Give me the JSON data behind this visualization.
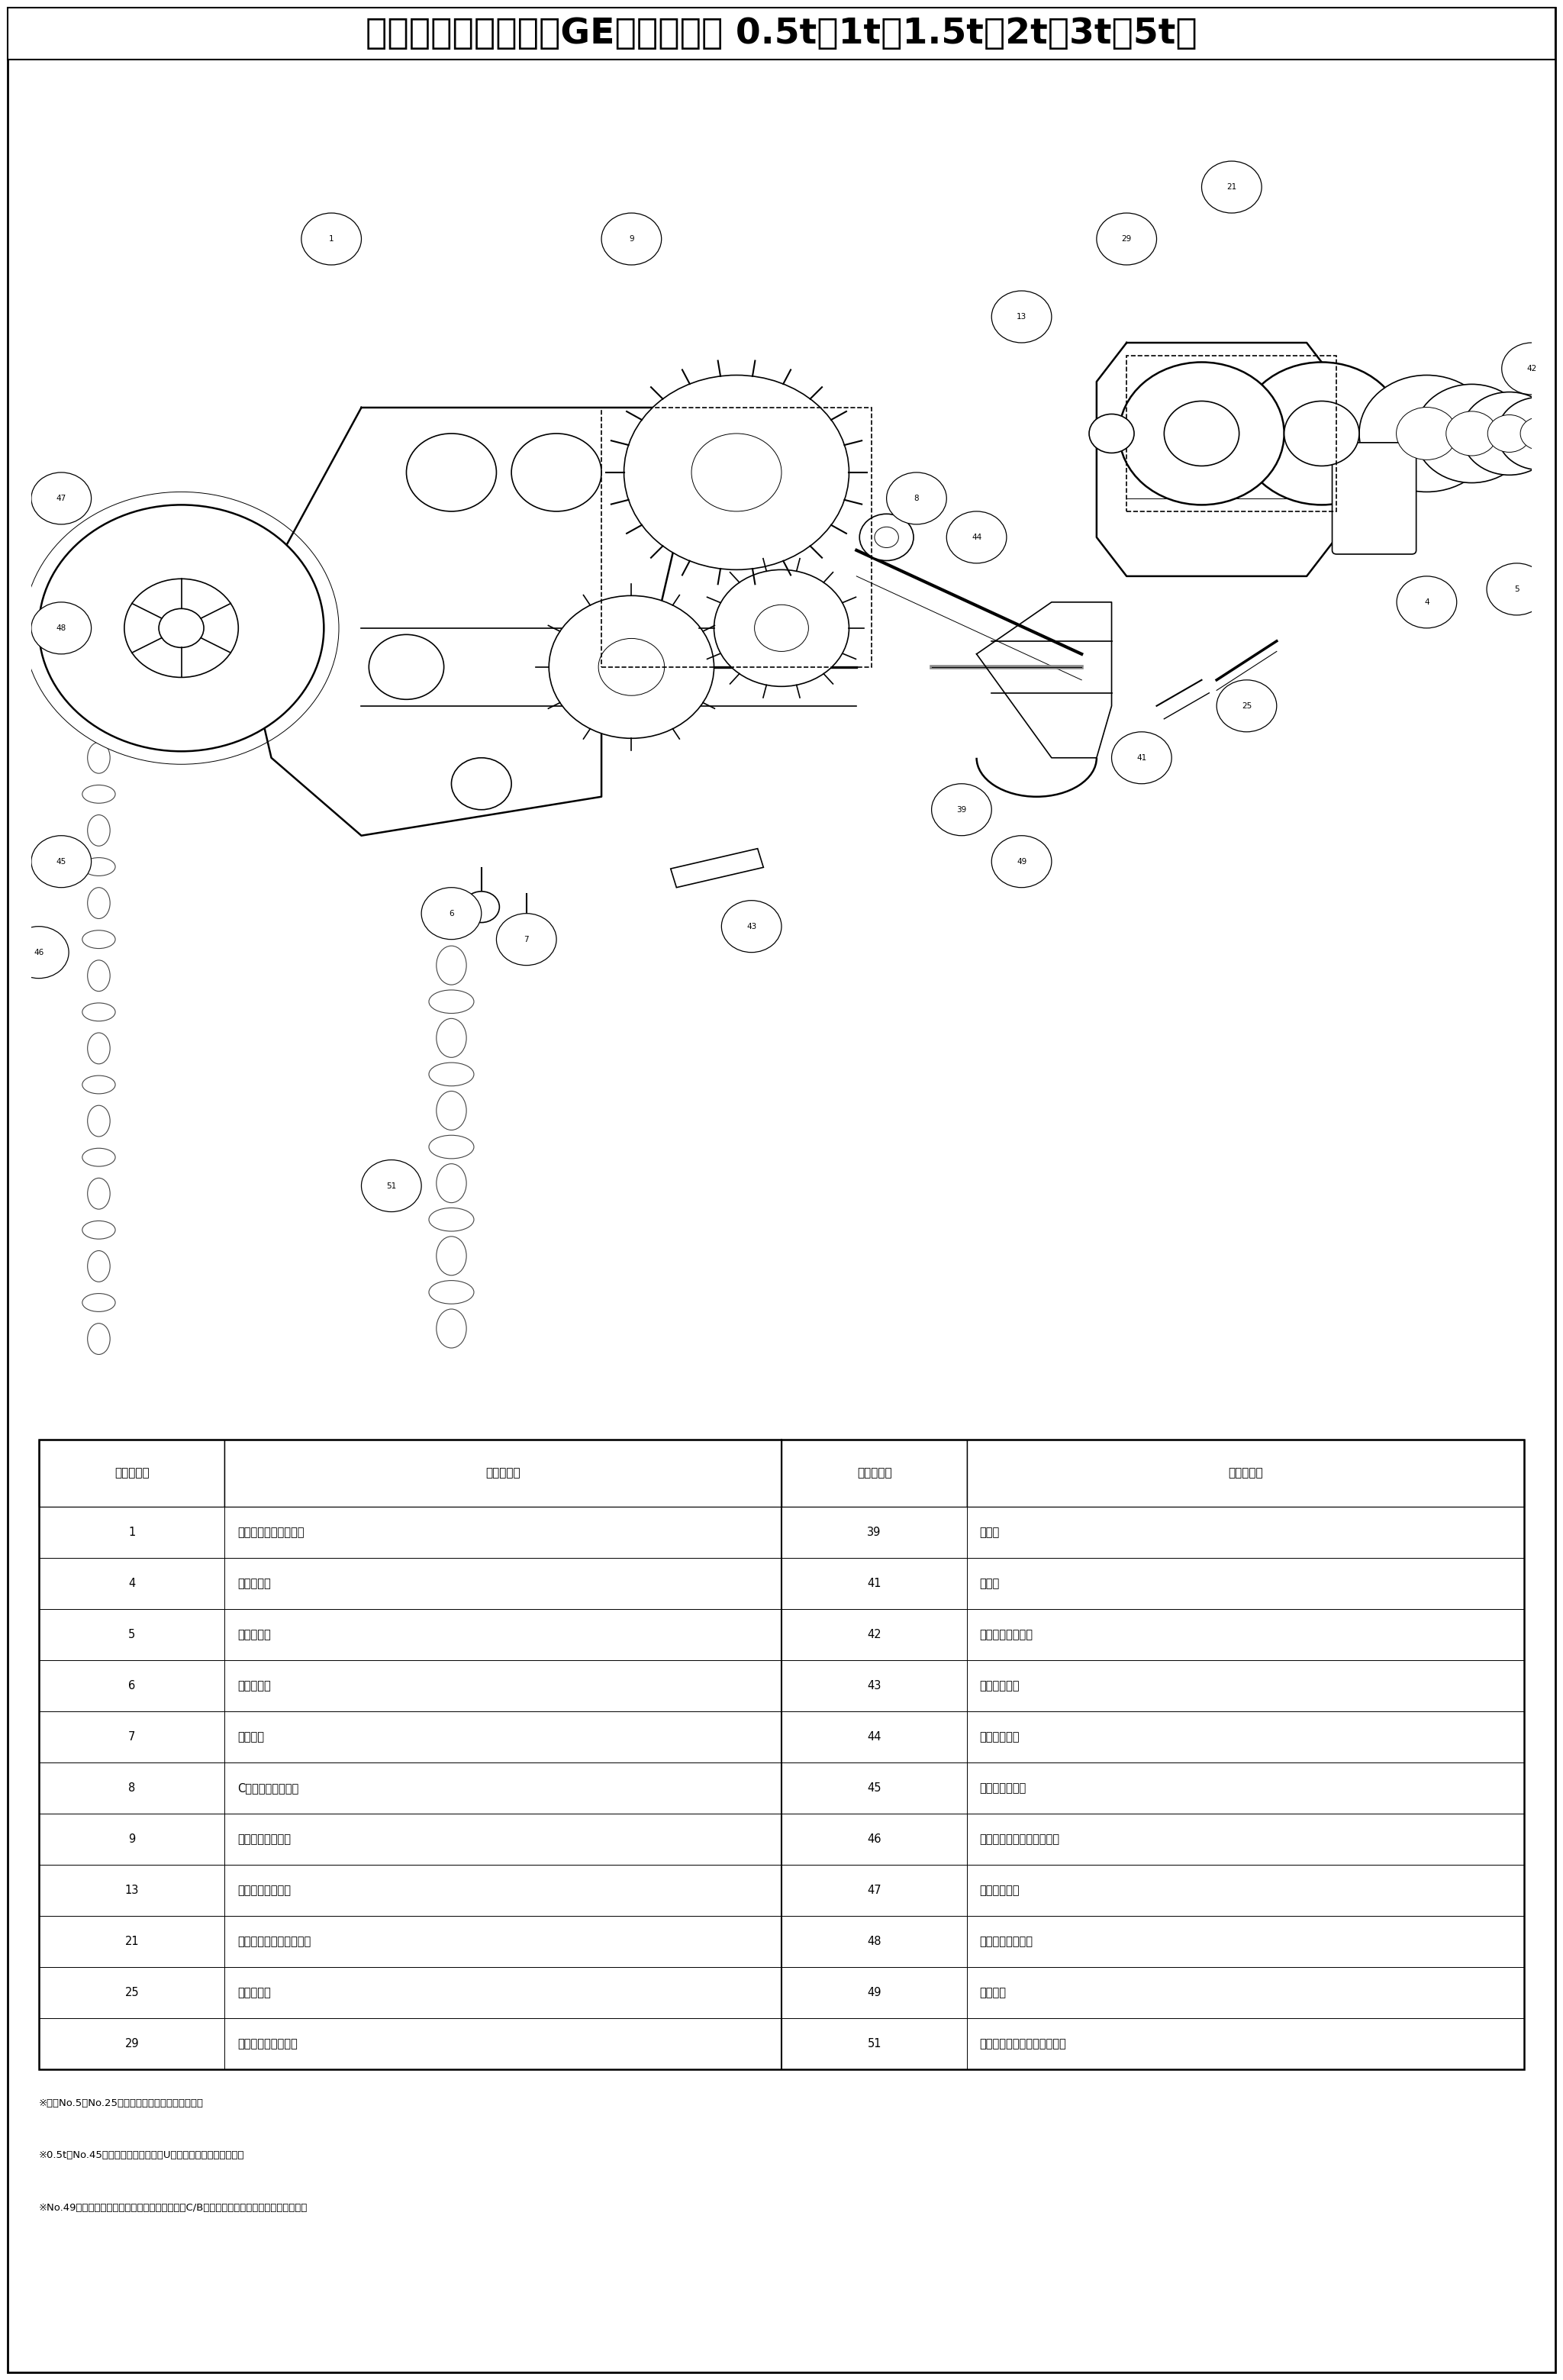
{
  "title": "分解図と部品名称：GE型（電気用 0.5t・1t・1.5t・2t・3t・5t）",
  "background_color": "#ffffff",
  "table_headers": [
    "分解図符号",
    "部　品　名",
    "分解図符号",
    "部　品　名"
  ],
  "table_rows": [
    [
      "1",
      "ギヤ側サイドプレート",
      "39",
      "吊り軸"
    ],
    [
      "4",
      "ブラケット",
      "41",
      "割ピン"
    ],
    [
      "5",
      "六角ボルト",
      "42",
      "アジャストカラー"
    ],
    [
      "6",
      "六角ナット",
      "43",
      "キープレート"
    ],
    [
      "7",
      "ばね座金",
      "44",
      "ピニオンギヤ"
    ],
    [
      "8",
      "C形止め輪（軸用）",
      "45",
      "六角溝付ナット"
    ],
    [
      "9",
      "ギヤローラセット",
      "46",
      "割ピン（ピニオンギヤ用）"
    ],
    [
      "13",
      "ローラピン用座金",
      "47",
      "ハンドホイル"
    ],
    [
      "21",
      "ブレン側サイドプレート",
      "48",
      "チェックワッシャ"
    ],
    [
      "25",
      "六角ボルト",
      "49",
      "結合金具"
    ],
    [
      "29",
      "ブレンローラセット",
      "51",
      "ハンドチェーン（標準揚程）"
    ]
  ],
  "footnotes": [
    "※部品No.5とNo.25のボルトの長さが異なります。",
    "※0.5tのNo.45・六角溝付ナットは、Uナットになっております。",
    "※No.49・結合金具を直結でご使用の場合、電気C/Bの機種名・トン数をご確認ください。"
  ]
}
